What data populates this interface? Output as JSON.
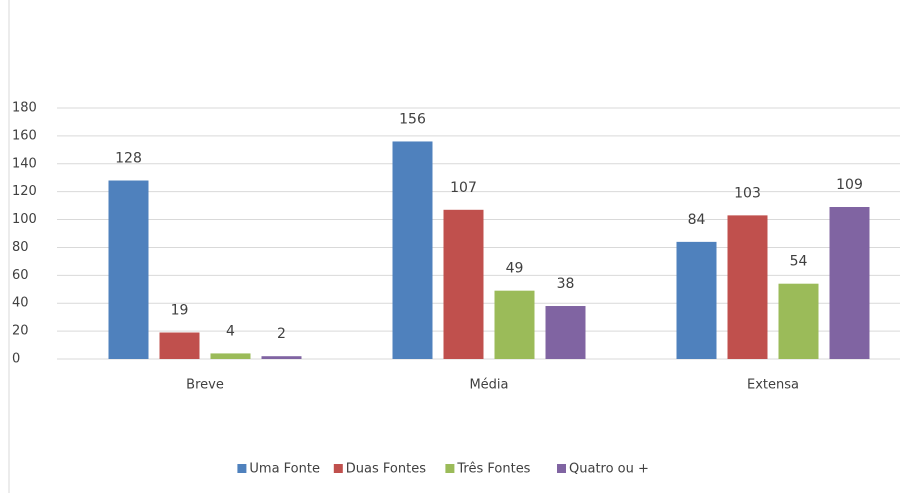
{
  "chart_data": {
    "type": "bar",
    "categories": [
      "Breve",
      "Média",
      "Extensa"
    ],
    "series": [
      {
        "name": "Uma Fonte",
        "color": "#4f81bd",
        "values": [
          128,
          156,
          84
        ]
      },
      {
        "name": "Duas Fontes",
        "color": "#c0504d",
        "values": [
          19,
          107,
          103
        ]
      },
      {
        "name": "Três Fontes",
        "color": "#9bbb59",
        "values": [
          4,
          49,
          54
        ]
      },
      {
        "name": "Quatro ou +",
        "color": "#8064a2",
        "values": [
          2,
          38,
          109
        ]
      }
    ],
    "ylim": [
      0,
      180
    ],
    "yticks": [
      0,
      20,
      40,
      60,
      80,
      100,
      120,
      140,
      160,
      180
    ],
    "grid": true,
    "legend": "bottom"
  }
}
